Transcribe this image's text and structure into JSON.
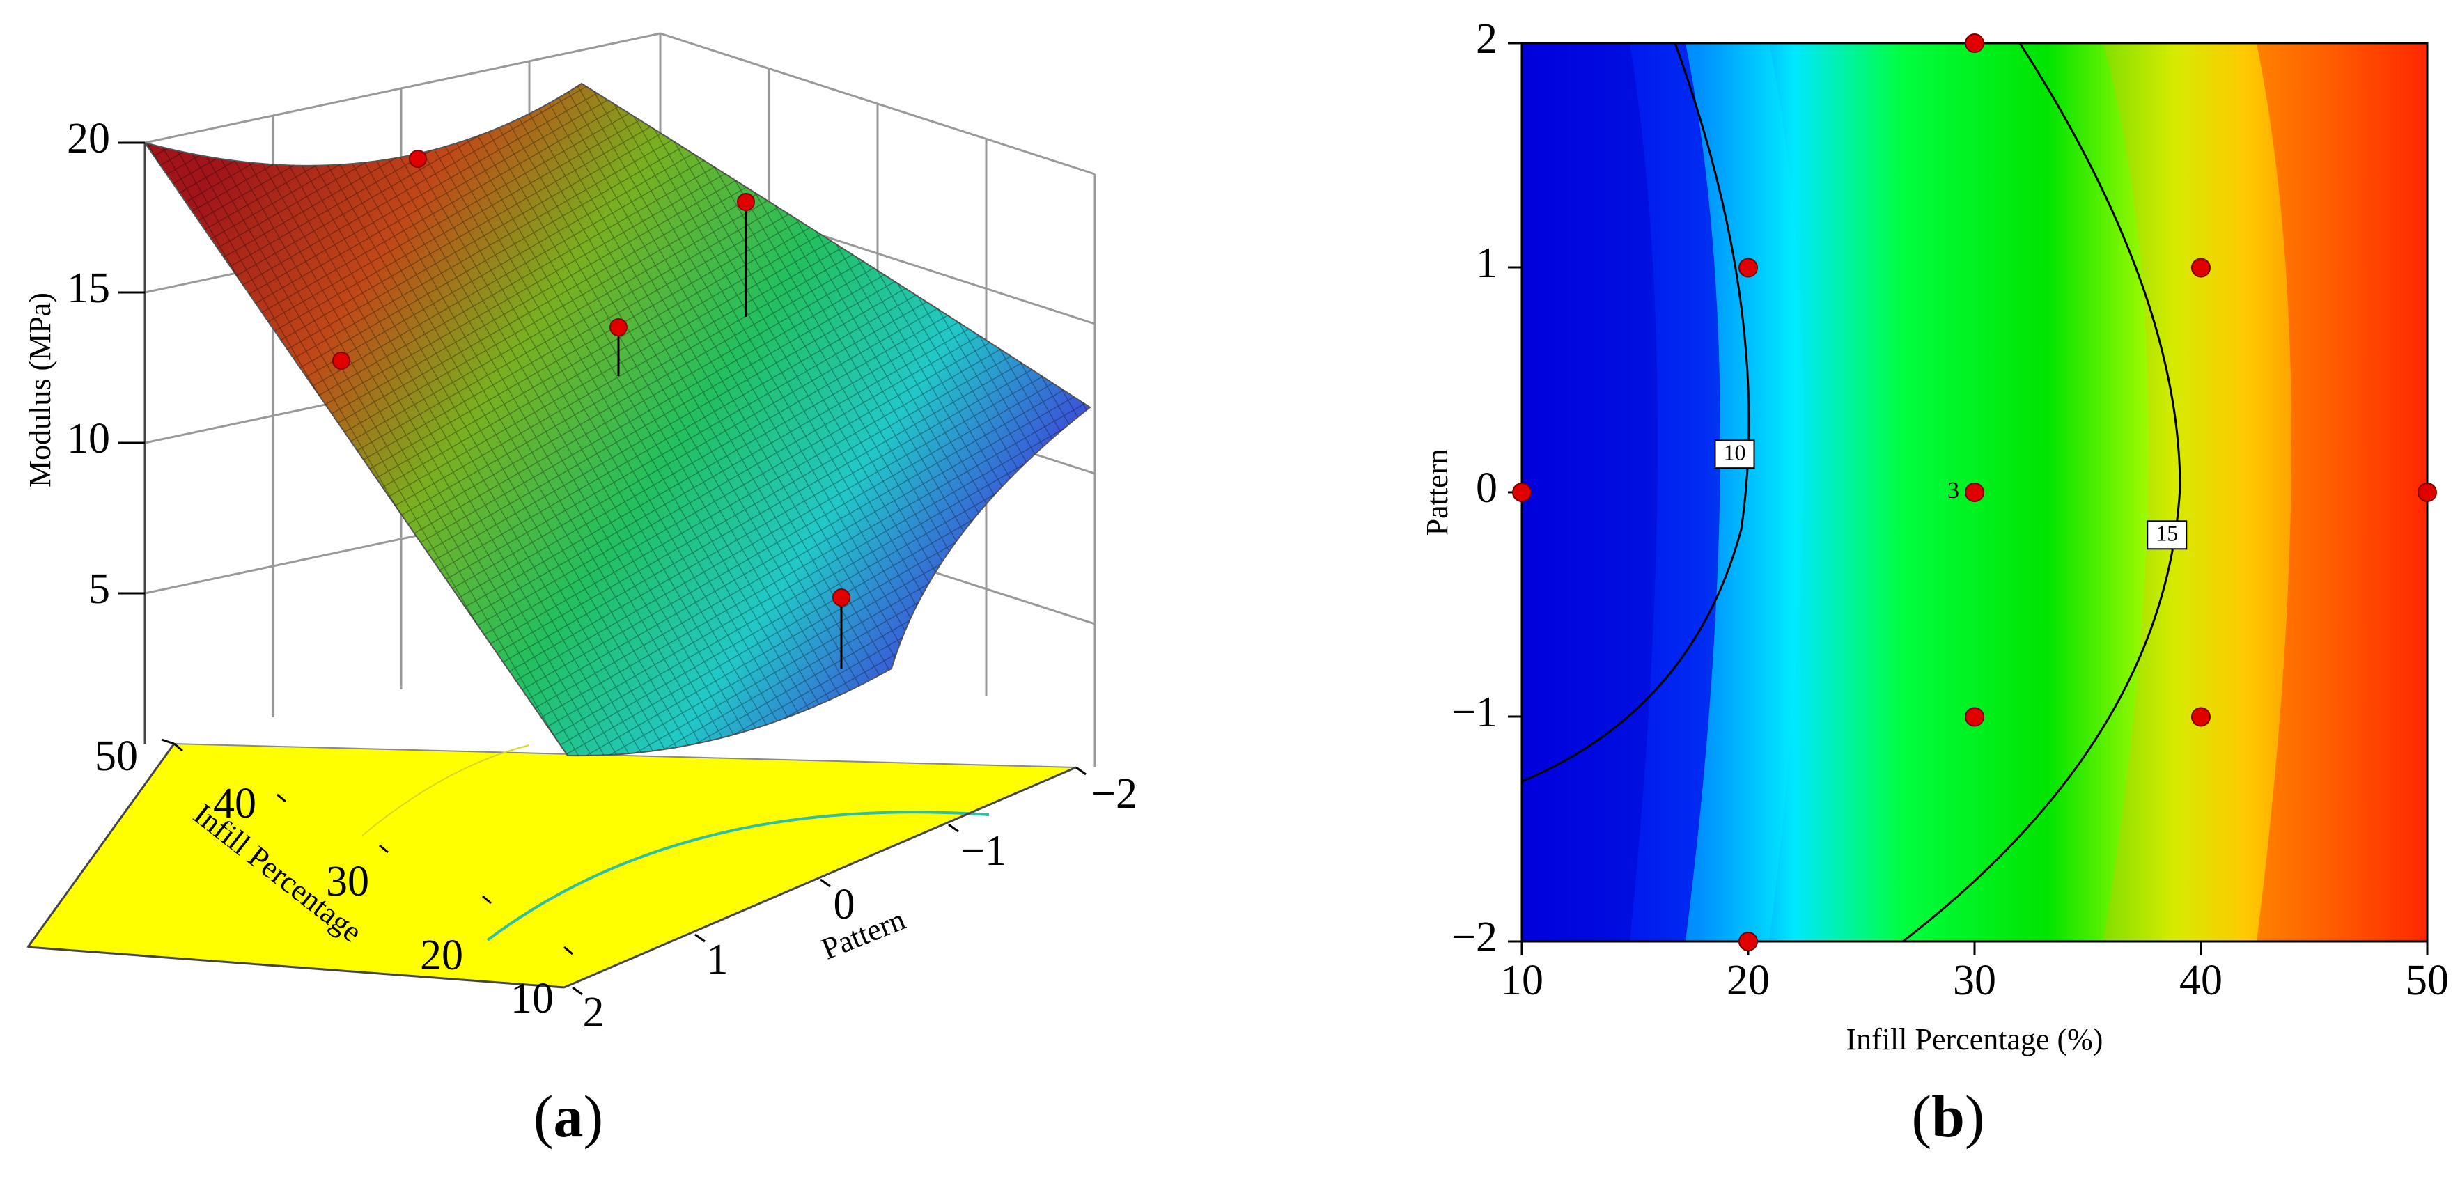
{
  "panels": [
    {
      "letter": "a"
    },
    {
      "letter": "b"
    }
  ],
  "chart_data": [
    {
      "panel": "a",
      "type": "surface",
      "zlabel": "Modulus (MPa)",
      "xlabel": "Infill Percentage",
      "ylabel": "Pattern",
      "z_ticks": [
        "5",
        "10",
        "15",
        "20"
      ],
      "x_ticks": [
        "10",
        "20",
        "30",
        "40",
        "50"
      ],
      "y_ticks": [
        "2",
        "1",
        "0",
        "−1",
        "−2"
      ],
      "x_range": [
        10,
        50
      ],
      "y_range": [
        -2,
        2
      ],
      "z_range": [
        0,
        20
      ],
      "surface_corners": [
        {
          "infill": 10,
          "pattern": 2,
          "modulus": 3.5
        },
        {
          "infill": 10,
          "pattern": -2,
          "modulus": 11.0
        },
        {
          "infill": 50,
          "pattern": 2,
          "modulus": 20.0
        },
        {
          "infill": 50,
          "pattern": -2,
          "modulus": 19.0
        }
      ],
      "design_points": [
        {
          "infill": 10,
          "pattern": 0,
          "modulus": 7.5
        },
        {
          "infill": 30,
          "pattern": 0,
          "modulus": 14.0
        },
        {
          "infill": 30,
          "pattern": 2,
          "modulus": 18.5
        },
        {
          "infill": 40,
          "pattern": 1,
          "modulus": 18.0
        },
        {
          "infill": 50,
          "pattern": 0,
          "modulus": 19.0
        }
      ],
      "floor_color": "#ffff00",
      "colormap": [
        "#0000ff",
        "#00ffff",
        "#00ff00",
        "#ffff00",
        "#ff0000"
      ]
    },
    {
      "panel": "b",
      "type": "contour",
      "xlabel": "Infill Percentage (%)",
      "ylabel": "Pattern",
      "x_ticks": [
        "10",
        "20",
        "30",
        "40",
        "50"
      ],
      "y_ticks": [
        "−2",
        "−1",
        "0",
        "1",
        "2"
      ],
      "xlim": [
        10,
        50
      ],
      "ylim": [
        -2,
        2
      ],
      "contour_lines": [
        {
          "level": "10",
          "label_at": {
            "infill": 19.4,
            "pattern": 0.17
          }
        },
        {
          "level": "15",
          "label_at": {
            "infill": 38.5,
            "pattern": -0.19
          }
        }
      ],
      "design_points": [
        {
          "infill": 10,
          "pattern": 0
        },
        {
          "infill": 20,
          "pattern": 1
        },
        {
          "infill": 20,
          "pattern": -2
        },
        {
          "infill": 30,
          "pattern": 2
        },
        {
          "infill": 30,
          "pattern": 0,
          "label": "3"
        },
        {
          "infill": 30,
          "pattern": -1
        },
        {
          "infill": 40,
          "pattern": 1
        },
        {
          "infill": 40,
          "pattern": -1
        },
        {
          "infill": 50,
          "pattern": 0
        }
      ],
      "colormap": [
        "#0000ff",
        "#00ffff",
        "#00ff00",
        "#ffff00",
        "#ff0000"
      ]
    }
  ]
}
